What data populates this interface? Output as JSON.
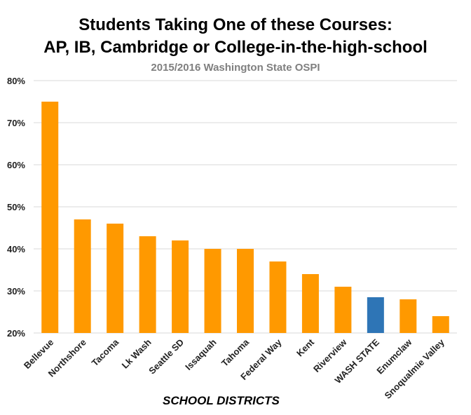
{
  "chart_data": {
    "type": "bar",
    "title": "Students Taking One of these Courses:",
    "title_line2": "AP, IB, Cambridge or College-in-the-high-school",
    "subtitle": "2015/2016 Washington State OSPI",
    "xlabel": "SCHOOL DISTRICTS",
    "ylabel": "",
    "ylim": [
      20,
      80
    ],
    "yticks": [
      "20%",
      "30%",
      "40%",
      "50%",
      "60%",
      "70%",
      "80%"
    ],
    "ytick_values": [
      20,
      30,
      40,
      50,
      60,
      70,
      80
    ],
    "grid": true,
    "categories": [
      "Bellevue",
      "Northshore",
      "Tacoma",
      "Lk Wash",
      "Seattle SD",
      "Issaquah",
      "Tahoma",
      "Federal Way",
      "Kent",
      "Riverview",
      "WASH STATE",
      "Enumclaw",
      "Snoqualmie Valley"
    ],
    "values": [
      75,
      47,
      46,
      43,
      42,
      40,
      40,
      37,
      34,
      31,
      28.5,
      28,
      24
    ],
    "colors": {
      "default": "#ff9900",
      "highlight": "#2e75b6",
      "highlight_category": "WASH STATE",
      "grid": "#d9d9d9"
    }
  }
}
